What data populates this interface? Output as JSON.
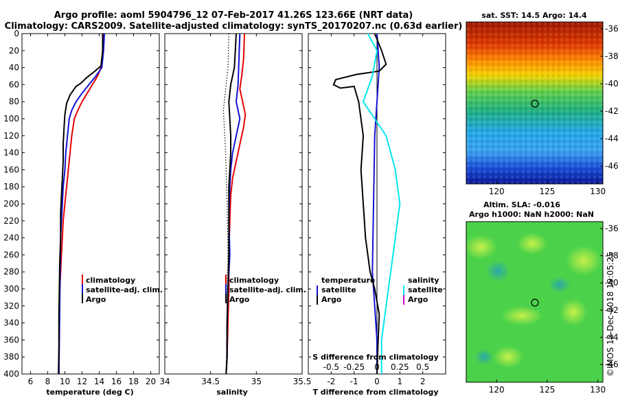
{
  "header": {
    "line1": "Argo profile: aoml 5904796_12 07-Feb-2017 41.26S 123.66E (NRT data)",
    "line2": "Climatology: CARS2009. Satellite-adjusted climatology: synTS_20170207.nc (0.63d earlier)"
  },
  "depth_ticks": [
    "0",
    "20",
    "40",
    "60",
    "80",
    "100",
    "120",
    "140",
    "160",
    "180",
    "200",
    "220",
    "240",
    "260",
    "280",
    "300",
    "320",
    "340",
    "360",
    "380",
    "400"
  ],
  "colors": {
    "climatology": "#e60000",
    "satellite": "#1010d0",
    "argo": "#000000",
    "sat_salinity": "#00e6f0",
    "argo_salinity": "#cc00cc"
  },
  "chart_data": [
    {
      "type": "line",
      "name": "temperature",
      "xlabel": "temperature (deg C)",
      "ylabel": "",
      "xlim": [
        5,
        21
      ],
      "ylim": [
        0,
        400
      ],
      "xticks": [
        "6",
        "8",
        "10",
        "12",
        "14",
        "16",
        "18",
        "20"
      ],
      "legend": [
        "climatology",
        "satellite-adj. clim.",
        "Argo"
      ],
      "series": [
        {
          "name": "climatology",
          "color": "#e60000",
          "points": [
            [
              14.5,
              0
            ],
            [
              14.4,
              20
            ],
            [
              14.2,
              40
            ],
            [
              13.8,
              50
            ],
            [
              13.2,
              60
            ],
            [
              12.6,
              70
            ],
            [
              12.0,
              80
            ],
            [
              11.5,
              90
            ],
            [
              11.1,
              100
            ],
            [
              10.8,
              120
            ],
            [
              10.6,
              140
            ],
            [
              10.4,
              160
            ],
            [
              10.2,
              180
            ],
            [
              10.0,
              200
            ],
            [
              9.8,
              220
            ],
            [
              9.7,
              240
            ],
            [
              9.6,
              260
            ],
            [
              9.5,
              280
            ],
            [
              9.4,
              300
            ],
            [
              9.35,
              340
            ],
            [
              9.3,
              380
            ],
            [
              9.3,
              400
            ]
          ]
        },
        {
          "name": "satellite-adj. clim.",
          "color": "#1010d0",
          "points": [
            [
              14.6,
              0
            ],
            [
              14.5,
              20
            ],
            [
              14.3,
              40
            ],
            [
              13.6,
              50
            ],
            [
              12.8,
              60
            ],
            [
              12.0,
              70
            ],
            [
              11.3,
              80
            ],
            [
              10.8,
              90
            ],
            [
              10.5,
              100
            ],
            [
              10.3,
              120
            ],
            [
              10.1,
              140
            ],
            [
              10.0,
              160
            ],
            [
              9.8,
              180
            ],
            [
              9.7,
              200
            ],
            [
              9.6,
              220
            ],
            [
              9.5,
              240
            ],
            [
              9.45,
              280
            ],
            [
              9.4,
              320
            ],
            [
              9.35,
              360
            ],
            [
              9.3,
              400
            ]
          ]
        },
        {
          "name": "Argo",
          "color": "#000000",
          "points": [
            [
              14.4,
              0
            ],
            [
              14.4,
              20
            ],
            [
              14.2,
              38
            ],
            [
              13.5,
              44
            ],
            [
              12.5,
              52
            ],
            [
              11.9,
              58
            ],
            [
              11.3,
              62
            ],
            [
              10.6,
              72
            ],
            [
              10.2,
              82
            ],
            [
              10.0,
              95
            ],
            [
              9.9,
              110
            ],
            [
              9.8,
              130
            ],
            [
              9.8,
              150
            ],
            [
              9.7,
              170
            ],
            [
              9.6,
              190
            ],
            [
              9.5,
              210
            ],
            [
              9.5,
              240
            ],
            [
              9.4,
              270
            ],
            [
              9.35,
              300
            ],
            [
              9.3,
              330
            ],
            [
              9.3,
              370
            ],
            [
              9.25,
              400
            ]
          ]
        }
      ]
    },
    {
      "type": "line",
      "name": "salinity",
      "xlabel": "salinity",
      "ylabel": "",
      "xlim": [
        34,
        35.5
      ],
      "ylim": [
        0,
        400
      ],
      "xticks": [
        "34",
        "34.5",
        "35",
        "35.5"
      ],
      "legend": [
        "climatology",
        "satellite-adj. clim.",
        "Argo"
      ],
      "series": [
        {
          "name": "climatology",
          "color": "#e60000",
          "points": [
            [
              34.87,
              0
            ],
            [
              34.86,
              30
            ],
            [
              34.84,
              50
            ],
            [
              34.82,
              65
            ],
            [
              34.85,
              80
            ],
            [
              34.88,
              95
            ],
            [
              34.86,
              110
            ],
            [
              34.82,
              130
            ],
            [
              34.78,
              150
            ],
            [
              34.74,
              170
            ],
            [
              34.72,
              190
            ],
            [
              34.71,
              220
            ],
            [
              34.7,
              260
            ],
            [
              34.7,
              300
            ],
            [
              34.69,
              340
            ],
            [
              34.68,
              380
            ],
            [
              34.67,
              400
            ]
          ]
        },
        {
          "name": "satellite-adj. clim.",
          "color": "#1010d0",
          "points": [
            [
              34.82,
              0
            ],
            [
              34.81,
              30
            ],
            [
              34.8,
              60
            ],
            [
              34.78,
              80
            ],
            [
              34.82,
              100
            ],
            [
              34.78,
              120
            ],
            [
              34.74,
              140
            ],
            [
              34.72,
              160
            ],
            [
              34.71,
              180
            ],
            [
              34.7,
              220
            ],
            [
              34.71,
              260
            ],
            [
              34.69,
              300
            ],
            [
              34.68,
              340
            ],
            [
              34.68,
              380
            ],
            [
              34.67,
              400
            ]
          ]
        },
        {
          "name": "Argo",
          "color": "#000000",
          "points": [
            [
              34.78,
              0
            ],
            [
              34.77,
              20
            ],
            [
              34.76,
              40
            ],
            [
              34.72,
              60
            ],
            [
              34.7,
              80
            ],
            [
              34.71,
              100
            ],
            [
              34.72,
              120
            ],
            [
              34.72,
              140
            ],
            [
              34.71,
              160
            ],
            [
              34.7,
              180
            ],
            [
              34.7,
              220
            ],
            [
              34.7,
              260
            ],
            [
              34.69,
              300
            ],
            [
              34.68,
              340
            ],
            [
              34.68,
              380
            ],
            [
              34.67,
              400
            ]
          ]
        }
      ]
    },
    {
      "type": "line",
      "name": "difference",
      "xlabel": "T difference from climatology",
      "s_label": "S difference from climatology",
      "xlim": [
        -3,
        3
      ],
      "ylim": [
        0,
        400
      ],
      "xticks": [
        "-2",
        "-1",
        "0",
        "1",
        "2"
      ],
      "s_ticks": [
        "-0.5",
        "-0.25",
        "0",
        "0.25",
        "0.5"
      ],
      "legend_temp_title": "temperature",
      "legend_sal_title": "salinity",
      "legend_items": [
        "satellite",
        "Argo",
        "satellite",
        "Argo"
      ],
      "series": [
        {
          "name": "temperature satellite",
          "color": "#1010d0",
          "points": [
            [
              0.0,
              0
            ],
            [
              0.1,
              40
            ],
            [
              0.0,
              80
            ],
            [
              -0.1,
              120
            ],
            [
              -0.15,
              200
            ],
            [
              -0.2,
              280
            ],
            [
              -0.1,
              320
            ],
            [
              0.0,
              360
            ],
            [
              0.0,
              400
            ]
          ]
        },
        {
          "name": "temperature Argo",
          "color": "#000000",
          "points": [
            [
              -0.1,
              0
            ],
            [
              0.2,
              20
            ],
            [
              0.4,
              36
            ],
            [
              0.1,
              44
            ],
            [
              -0.9,
              48
            ],
            [
              -1.8,
              54
            ],
            [
              -1.9,
              60
            ],
            [
              -1.6,
              64
            ],
            [
              -1.0,
              62
            ],
            [
              -0.8,
              80
            ],
            [
              -0.6,
              120
            ],
            [
              -0.7,
              160
            ],
            [
              -0.6,
              200
            ],
            [
              -0.5,
              240
            ],
            [
              -0.3,
              280
            ],
            [
              -0.1,
              300
            ],
            [
              0.1,
              330
            ],
            [
              0.05,
              360
            ],
            [
              0.0,
              400
            ]
          ]
        },
        {
          "name": "salinity satellite",
          "color": "#00e6f0",
          "points": [
            [
              -0.1,
              0
            ],
            [
              0.0,
              20
            ],
            [
              -0.05,
              50
            ],
            [
              -0.15,
              80
            ],
            [
              0.1,
              120
            ],
            [
              0.2,
              160
            ],
            [
              0.25,
              200
            ],
            [
              0.2,
              240
            ],
            [
              0.15,
              280
            ],
            [
              0.1,
              320
            ],
            [
              0.05,
              360
            ],
            [
              0.05,
              400
            ]
          ]
        },
        {
          "name": "salinity Argo",
          "color": "#cc00cc",
          "points": []
        }
      ]
    }
  ],
  "maps": {
    "sst": {
      "title": "sat. SST: 14.5 Argo: 14.4",
      "lon_ticks": [
        "120",
        "125",
        "130"
      ],
      "lat_ticks": [
        "-36",
        "-38",
        "-40",
        "-42",
        "-44",
        "-46"
      ]
    },
    "sla": {
      "title1": "Altim. SLA: -0.016",
      "title2": "Argo h1000: NaN h2000: NaN",
      "lon_ticks": [
        "120",
        "125",
        "130"
      ],
      "lat_ticks": [
        "-36",
        "-38",
        "-40",
        "-42",
        "-44",
        "-46"
      ]
    }
  },
  "footer_stamp": "©IMOS 12-Dec-2018 19:05:25"
}
